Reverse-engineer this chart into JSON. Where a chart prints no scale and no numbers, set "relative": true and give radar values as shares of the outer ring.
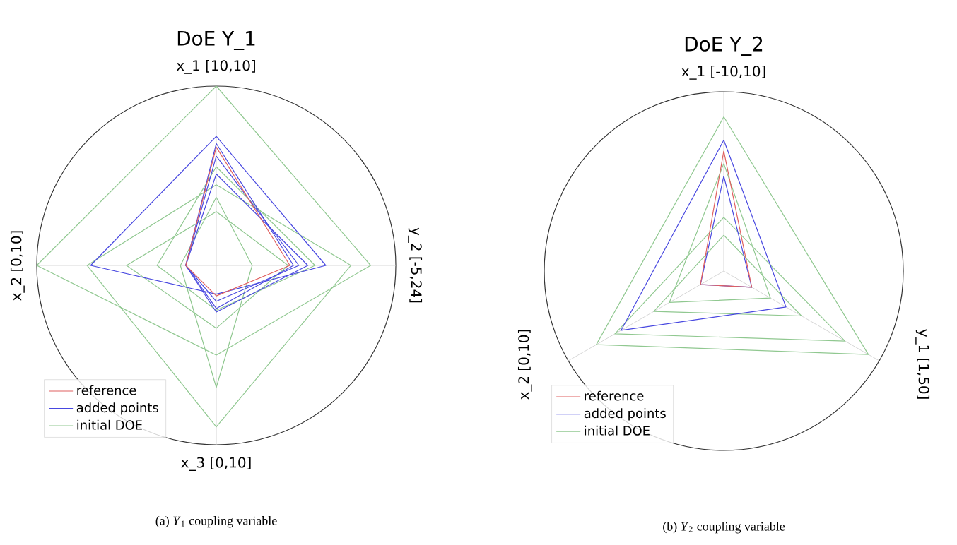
{
  "chart_data": [
    {
      "type": "radar",
      "title": "DoE Y_1",
      "relative": true,
      "grid": true,
      "legend": "bottom left",
      "categories": [
        "x_1 [10,10]",
        "y_2 [-5,24]",
        "x_3 [0,10]",
        "x_2 [0,10]"
      ],
      "annotations": [
        "(a) *Y*$_{1}$ coupling variable"
      ],
      "series": [
        {
          "name": "reference",
          "color": "#e06060",
          "values": [
            0.66,
            0.41,
            0.17,
            0.17
          ]
        },
        {
          "name": "added points",
          "color": "#4848e0",
          "values": [
            0.72,
            0.61,
            0.16,
            0.7
          ]
        },
        {
          "color": "#4848e0",
          "values": [
            0.61,
            0.46,
            0.2,
            0.17
          ]
        },
        {
          "color": "#4848e0",
          "values": [
            0.51,
            0.51,
            0.26,
            0.17
          ]
        },
        {
          "color": "#4848e0",
          "values": [
            0.68,
            0.43,
            0.24,
            0.17
          ]
        },
        {
          "name": "initial DOE",
          "color": "#90c890",
          "values": [
            1.0,
            0.86,
            0.5,
            1.0
          ]
        },
        {
          "color": "#90c890",
          "values": [
            0.45,
            0.75,
            0.9,
            0.72
          ]
        },
        {
          "color": "#90c890",
          "values": [
            0.3,
            0.4,
            0.35,
            0.5
          ]
        },
        {
          "color": "#90c890",
          "values": [
            0.55,
            0.55,
            0.25,
            0.33
          ]
        },
        {
          "color": "#90c890",
          "values": [
            0.38,
            0.2,
            0.68,
            0.2
          ]
        }
      ]
    },
    {
      "type": "radar",
      "title": "DoE Y_2",
      "relative": true,
      "grid": true,
      "legend": "bottom left",
      "categories": [
        "x_1 [-10,10]",
        "y_1 [1,50]",
        "x_2 [0,10]"
      ],
      "annotations": [
        "(b) *Y*$_{2}$ coupling variable"
      ],
      "series": [
        {
          "name": "reference",
          "color": "#e06060",
          "values": [
            0.67,
            0.18,
            0.15
          ]
        },
        {
          "name": "added points",
          "color": "#4848e0",
          "values": [
            0.73,
            0.4,
            0.66
          ]
        },
        {
          "color": "#4848e0",
          "values": [
            0.53,
            0.18,
            0.15
          ]
        },
        {
          "name": "initial DOE",
          "color": "#90c890",
          "values": [
            0.86,
            0.93,
            0.82
          ]
        },
        {
          "color": "#90c890",
          "values": [
            0.3,
            0.78,
            0.7
          ]
        },
        {
          "color": "#90c890",
          "values": [
            0.2,
            0.5,
            0.45
          ]
        },
        {
          "color": "#90c890",
          "values": [
            0.6,
            0.3,
            0.35
          ]
        }
      ]
    }
  ]
}
